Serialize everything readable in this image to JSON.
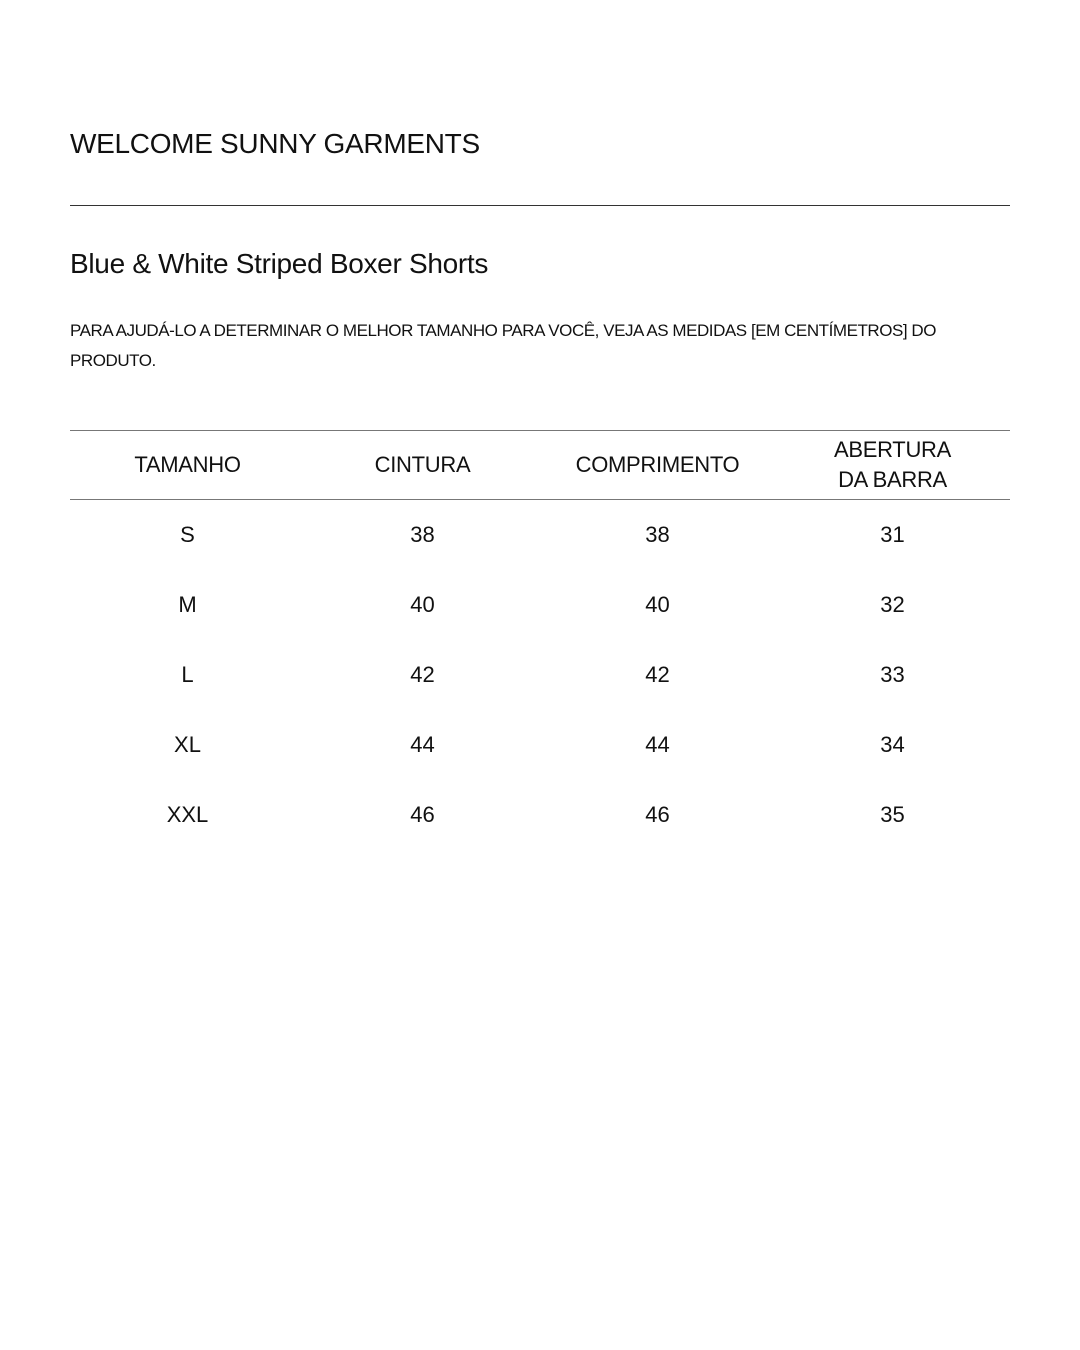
{
  "brand": "WELCOME SUNNY GARMENTS",
  "product_title": "Blue & White Striped Boxer Shorts",
  "description": "PARA AJUDÁ-LO A DETERMINAR O MELHOR TAMANHO PARA VOCÊ, VEJA AS MEDIDAS [EM CENTÍMETROS] DO PRODUTO.",
  "table": {
    "headers": [
      "TAMANHO",
      "CINTURA",
      "COMPRIMENTO",
      "ABERTURA DA BARRA"
    ],
    "rows": [
      [
        "S",
        "38",
        "38",
        "31"
      ],
      [
        "M",
        "40",
        "40",
        "32"
      ],
      [
        "L",
        "42",
        "42",
        "33"
      ],
      [
        "XL",
        "44",
        "44",
        "34"
      ],
      [
        "XXL",
        "46",
        "46",
        "35"
      ]
    ]
  }
}
